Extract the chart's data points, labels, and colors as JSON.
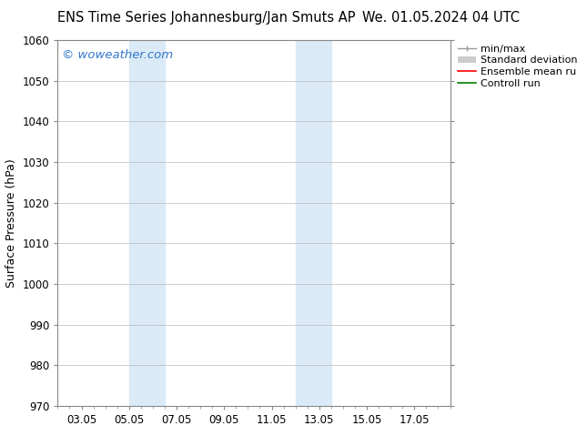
{
  "title_left": "ENS Time Series Johannesburg/Jan Smuts AP",
  "title_right": "We. 01.05.2024 04 UTC",
  "ylabel": "Surface Pressure (hPa)",
  "ylim": [
    970,
    1060
  ],
  "yticks": [
    970,
    980,
    990,
    1000,
    1010,
    1020,
    1030,
    1040,
    1050,
    1060
  ],
  "xtick_labels": [
    "03.05",
    "05.05",
    "07.05",
    "09.05",
    "11.05",
    "13.05",
    "15.05",
    "17.05"
  ],
  "xtick_positions": [
    2,
    4,
    6,
    8,
    10,
    12,
    14,
    16
  ],
  "xlim": [
    1,
    17
  ],
  "shaded_bands": [
    {
      "xmin": 4.0,
      "xmax": 5.5
    },
    {
      "xmin": 11.0,
      "xmax": 12.5
    }
  ],
  "shade_color": "#daeaf7",
  "background_color": "#ffffff",
  "plot_bg_color": "#ffffff",
  "watermark_text": "© woweather.com",
  "watermark_color": "#3377cc",
  "legend_entries": [
    {
      "label": "min/max"
    },
    {
      "label": "Standard deviation"
    },
    {
      "label": "Ensemble mean run"
    },
    {
      "label": "Controll run"
    }
  ],
  "title_fontsize": 10.5,
  "axis_label_fontsize": 9,
  "tick_fontsize": 8.5,
  "legend_fontsize": 8,
  "grid_color": "#bbbbbb",
  "grid_lw": 0.5,
  "spine_color": "#888888",
  "minmax_color": "#999999",
  "std_color": "#cccccc",
  "ensemble_color": "#ff0000",
  "control_color": "#008000"
}
